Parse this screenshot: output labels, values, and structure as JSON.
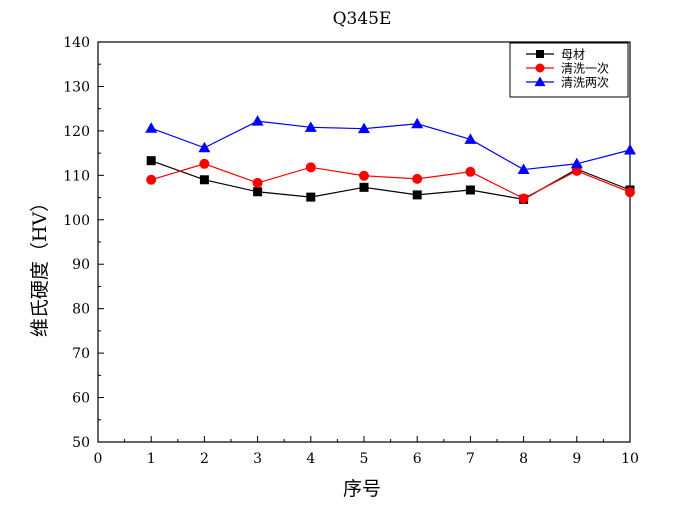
{
  "chart_data": {
    "type": "line",
    "title": "Q345E",
    "xlabel": "序号",
    "ylabel": "维氏硬度（HV）",
    "xlim": [
      0,
      10
    ],
    "ylim": [
      50,
      140
    ],
    "x_ticks": [
      0,
      1,
      2,
      3,
      4,
      5,
      6,
      7,
      8,
      9,
      10
    ],
    "y_ticks": [
      50,
      60,
      70,
      80,
      90,
      100,
      110,
      120,
      130,
      140
    ],
    "x": [
      1,
      2,
      3,
      4,
      5,
      6,
      7,
      8,
      9,
      10
    ],
    "grid": false,
    "legend_position": "top-right",
    "series": [
      {
        "name": "母材",
        "color": "#000000",
        "marker": "square",
        "values": [
          113.3,
          109,
          106.3,
          105.1,
          107.3,
          105.6,
          106.7,
          104.6,
          111.4,
          106.7
        ]
      },
      {
        "name": "清洗一次",
        "color": "#ff0000",
        "marker": "circle",
        "values": [
          109,
          112.6,
          108.3,
          111.8,
          109.9,
          109.2,
          110.8,
          104.8,
          111,
          106.2
        ]
      },
      {
        "name": "清洗两次",
        "color": "#0000ff",
        "marker": "triangle",
        "values": [
          120.6,
          116.2,
          122.2,
          120.8,
          120.5,
          121.6,
          118.1,
          111.3,
          112.6,
          115.7
        ]
      }
    ]
  }
}
